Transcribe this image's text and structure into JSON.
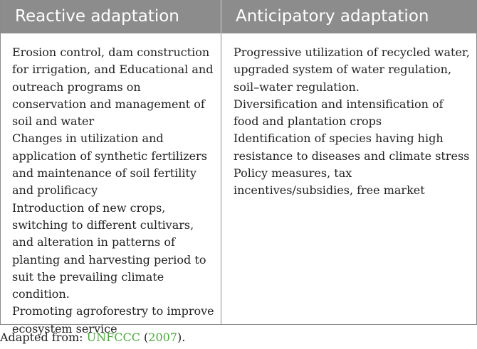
{
  "table": {
    "headers": {
      "reactive": "Reactive adaptation",
      "anticipatory": "Anticipatory adaptation"
    },
    "reactive_items": [
      "Erosion control, dam construction for irrigation, and Educational and outreach programs on conservation and management of soil and water",
      "Changes in utilization and application of synthetic fertilizers and maintenance of soil fertility and prolificacy",
      "Introduction of new crops, switching to different cultivars, and alteration in patterns of planting and harvesting period to suit the prevailing climate condition.",
      "Promoting agroforestry to improve ecosystem service"
    ],
    "anticipatory_items": [
      "Progressive utilization of recycled water, upgraded system of water regulation, soil–water regulation.",
      "Diversification and intensification of food and plantation crops",
      "Identification of species having high resistance to diseases and climate stress",
      "Policy measures, tax incentives/subsidies, free market"
    ]
  },
  "source": {
    "prefix": "Adapted from: ",
    "org": "UNFCCC",
    "open": " (",
    "year": "2007",
    "close": ")."
  },
  "colors": {
    "header_bg": "#8c8c8c",
    "link": "#4caa3c"
  }
}
